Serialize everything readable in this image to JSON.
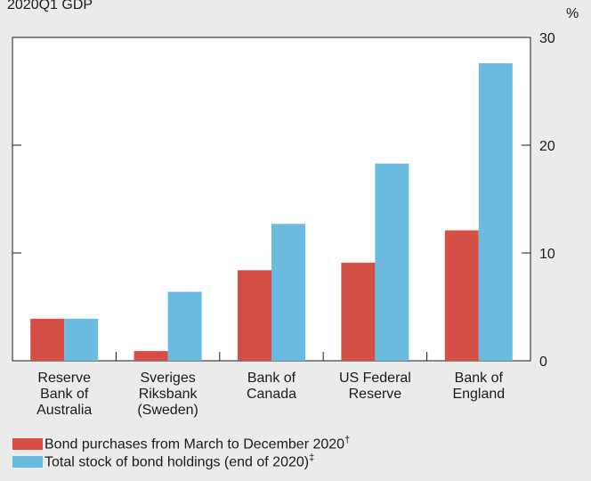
{
  "header": {
    "subtitle": "2020Q1 GDP",
    "unit": "%"
  },
  "colors": {
    "purchases": "#d64f47",
    "holdings": "#6bbbe0",
    "background": "#ebebeb",
    "plot": "#ffffff"
  },
  "chart_data": {
    "type": "bar",
    "categories": [
      [
        "Reserve",
        "Bank of",
        "Australia"
      ],
      [
        "Sveriges",
        "Riksbank",
        "(Sweden)"
      ],
      [
        "Bank of",
        "Canada"
      ],
      [
        "US Federal",
        "Reserve"
      ],
      [
        "Bank of",
        "England"
      ]
    ],
    "series": [
      {
        "name": "Bond purchases from March to December 2020",
        "marker": "†",
        "values": [
          3.9,
          0.9,
          8.4,
          9.1,
          12.1
        ]
      },
      {
        "name": "Total stock of bond holdings (end of 2020)",
        "marker": "‡",
        "values": [
          3.9,
          6.4,
          12.7,
          18.3,
          27.6
        ]
      }
    ],
    "ylim": [
      0,
      30
    ],
    "yticks": [
      0,
      10,
      20,
      30
    ],
    "ylabel": "%",
    "grid": false,
    "legend_position": "bottom-left"
  }
}
